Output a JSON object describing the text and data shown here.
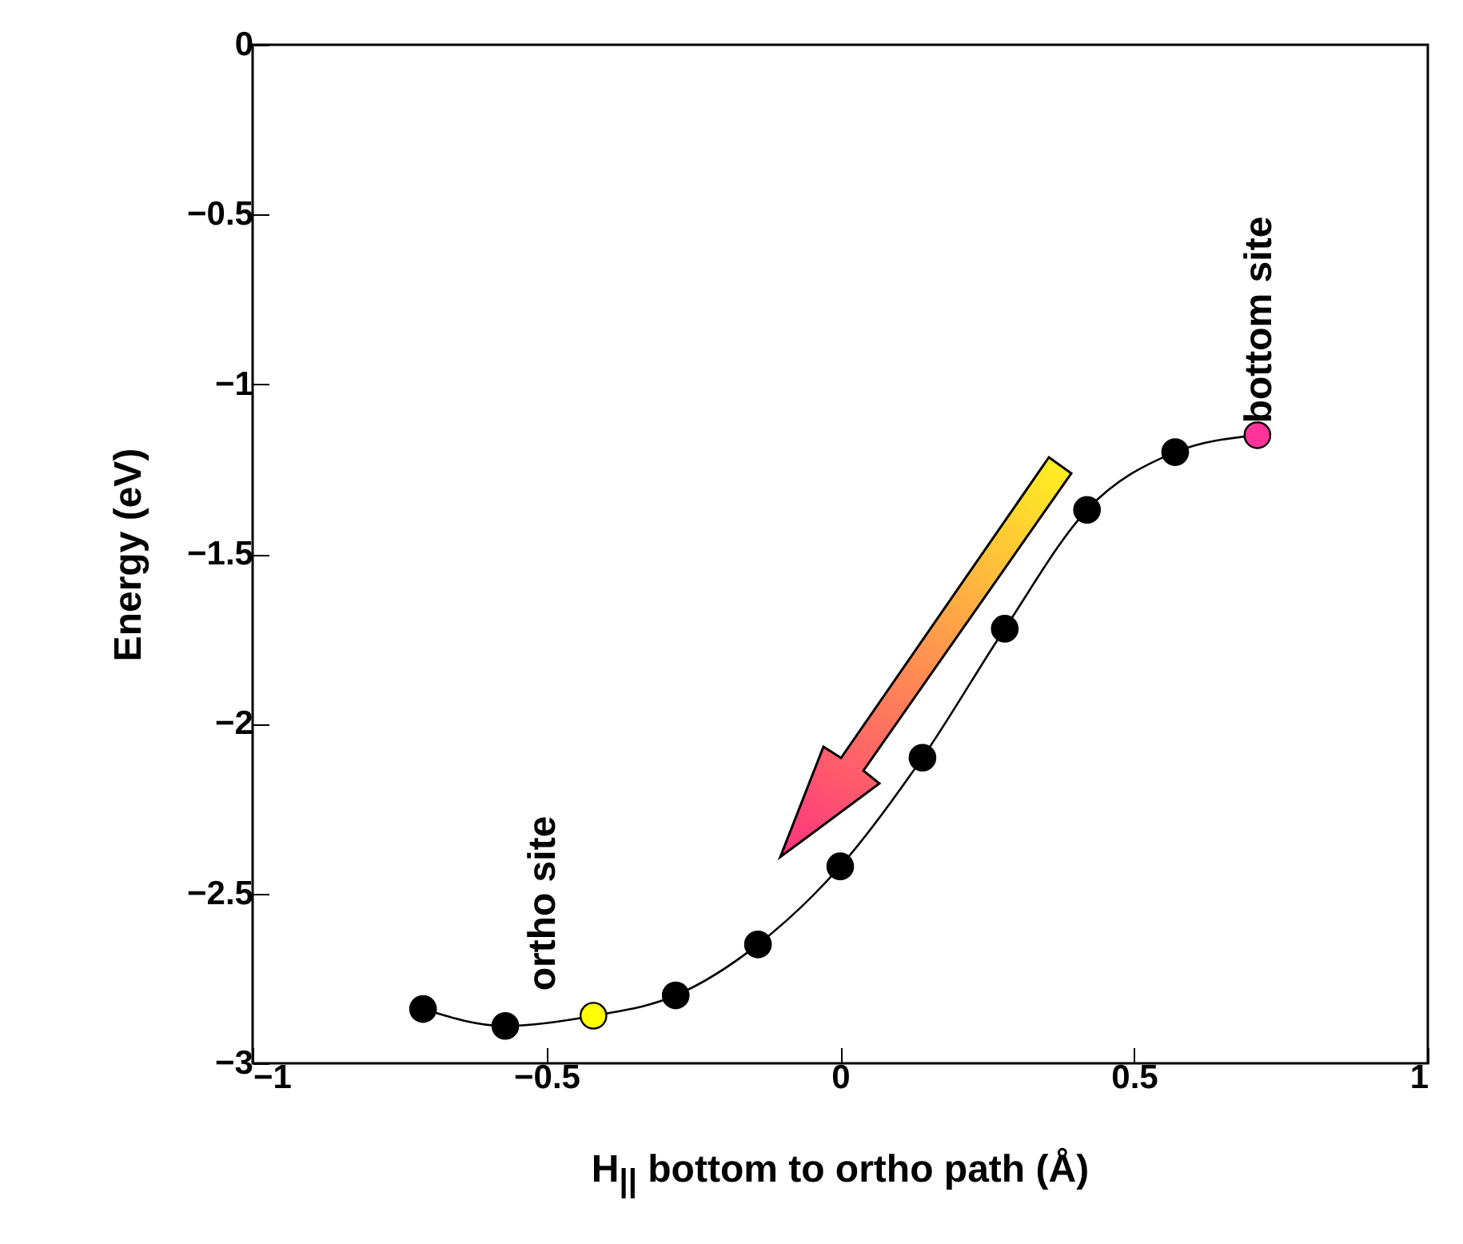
{
  "chart_data": {
    "type": "line",
    "xlabel": "H$_{||}$ bottom to ortho path (Å)",
    "ylabel": "Energy (eV)",
    "x": [
      -0.71,
      -0.57,
      -0.42,
      -0.28,
      -0.14,
      0,
      0.14,
      0.28,
      0.42,
      0.57,
      0.71
    ],
    "series": [
      {
        "color": "#000000",
        "colors": [
          "#000000",
          "#000000",
          "#ffff00",
          "#000000",
          "#000000",
          "#000000",
          "#000000",
          "#000000",
          "#000000",
          "#000000",
          "#ff3399"
        ],
        "values": [
          -2.84,
          -2.89,
          -2.86,
          -2.8,
          -2.65,
          -2.42,
          -2.1,
          -1.72,
          -1.37,
          -1.2,
          -1.15
        ]
      }
    ],
    "xlim": [
      -1,
      1
    ],
    "xticks": [
      -1,
      -0.5,
      0,
      0.5,
      1
    ],
    "ylim": [
      -3,
      0
    ],
    "yticks": [
      -3,
      -2.5,
      -2,
      -1.5,
      -1,
      -0.5,
      0
    ],
    "marker": "circle",
    "line_style": "solid",
    "grid": false,
    "annotations": [
      "ortho site",
      "bottom site"
    ]
  }
}
